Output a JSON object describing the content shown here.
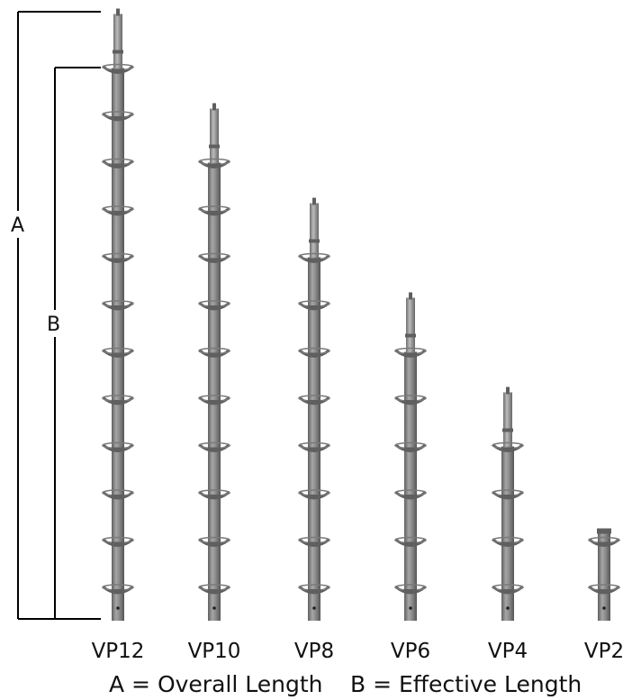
{
  "dimension_labels": {
    "a": "A",
    "b": "B"
  },
  "products": [
    {
      "name": "VP12",
      "flanges": 12
    },
    {
      "name": "VP10",
      "flanges": 10
    },
    {
      "name": "VP8",
      "flanges": 8
    },
    {
      "name": "VP6",
      "flanges": 6
    },
    {
      "name": "VP4",
      "flanges": 4
    },
    {
      "name": "VP2",
      "flanges": 2
    }
  ],
  "legend": {
    "a_text": "A = Overall Length",
    "b_text": "B = Effective Length"
  },
  "colors": {
    "background": "#ffffff",
    "line": "#000000",
    "post": "#8a8a8a",
    "post_dark": "#5f5f5f",
    "post_light": "#b4b4b4",
    "flange": "#7a7a7a"
  }
}
